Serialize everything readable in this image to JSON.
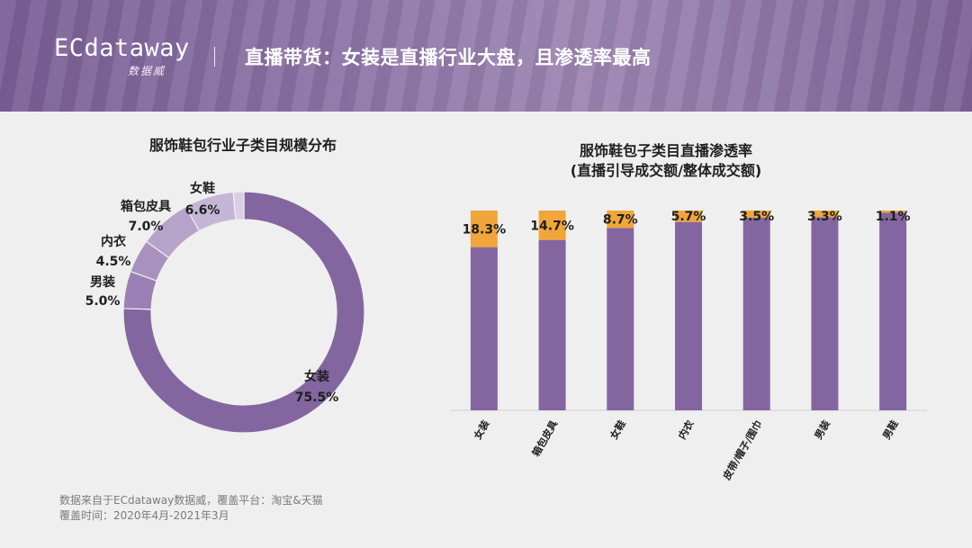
{
  "header": {
    "logo_text": "ECdataway",
    "logo_sub": "数据威",
    "title": "直播带货：女装是直播行业大盘，且渗透率最高"
  },
  "colors": {
    "purple": "#8366a0",
    "orange": "#f0a63a",
    "header_purple": "#8a70a4"
  },
  "footer": {
    "line1": "数据来自于ECdataway数据威，覆盖平台：淘宝&天猫",
    "line2": "覆盖时间：2020年4月-2021年3月"
  },
  "chart_data": [
    {
      "type": "pie",
      "donut": true,
      "title": "服饰鞋包行业子类目规模分布",
      "slices": [
        {
          "label": "女装",
          "value": 75.5,
          "value_label": "75.5%",
          "color": "#8366a0"
        },
        {
          "label": "男装",
          "value": 5.0,
          "value_label": "5.0%",
          "color": "#9a80b4"
        },
        {
          "label": "内衣",
          "value": 4.5,
          "value_label": "4.5%",
          "color": "#a891bf"
        },
        {
          "label": "箱包皮具",
          "value": 7.0,
          "value_label": "7.0%",
          "color": "#b6a3ca"
        },
        {
          "label": "女鞋",
          "value": 6.6,
          "value_label": "6.6%",
          "color": "#c5b6d6"
        },
        {
          "label": "",
          "value": 1.4,
          "value_label": "",
          "color": "#d9cfe4"
        }
      ]
    },
    {
      "type": "bar",
      "stacked": true,
      "title_line1": "服饰鞋包子类目直播渗透率",
      "title_line2": "(直播引导成交额/整体成交额)",
      "categories": [
        "女装",
        "箱包皮具",
        "女鞋",
        "内衣",
        "皮带/帽子/围巾",
        "男装",
        "男鞋"
      ],
      "values": [
        18.3,
        14.7,
        8.7,
        5.7,
        3.5,
        3.3,
        1.1
      ],
      "value_labels": [
        "18.3%",
        "14.7%",
        "8.7%",
        "5.7%",
        "3.5%",
        "3.3%",
        "1.1%"
      ],
      "ylim": [
        0,
        100
      ],
      "grid": false,
      "legend": "none"
    }
  ]
}
